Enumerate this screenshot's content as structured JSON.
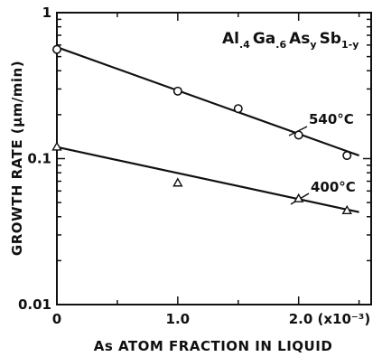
{
  "chart_data": {
    "type": "scatter",
    "title": "",
    "xlabel": "As ATOM FRACTION IN LIQUID",
    "ylabel": "GROWTH RATE (µm/min)",
    "xscale": "linear",
    "yscale": "log",
    "xlim": [
      0,
      2.6
    ],
    "ylim": [
      0.01,
      1
    ],
    "grid": false,
    "x_ticks": [
      {
        "value": 0,
        "label": "0"
      },
      {
        "value": 1.0,
        "label": "1.0"
      },
      {
        "value": 2.0,
        "label": "2.0 (x10⁻³)"
      }
    ],
    "y_ticks": [
      {
        "value": 0.01,
        "label": "0.01"
      },
      {
        "value": 0.1,
        "label": "0.1"
      },
      {
        "value": 1,
        "label": "1"
      }
    ],
    "formula": {
      "parts": [
        "Al",
        ".4",
        "Ga",
        ".6",
        "As",
        "y",
        "Sb",
        "1-y"
      ]
    },
    "series": [
      {
        "name": "540°C",
        "marker": "circle",
        "x": [
          0,
          1.0,
          1.5,
          2.0,
          2.4
        ],
        "y": [
          0.56,
          0.29,
          0.22,
          0.145,
          0.105
        ],
        "fit_line": {
          "x": [
            0,
            2.5
          ],
          "y": [
            0.58,
            0.105
          ]
        }
      },
      {
        "name": "400°C",
        "marker": "triangle",
        "x": [
          0,
          1.0,
          2.0,
          2.4
        ],
        "y": [
          0.12,
          0.068,
          0.053,
          0.044
        ],
        "fit_line": {
          "x": [
            0,
            2.5
          ],
          "y": [
            0.12,
            0.043
          ]
        }
      }
    ]
  }
}
